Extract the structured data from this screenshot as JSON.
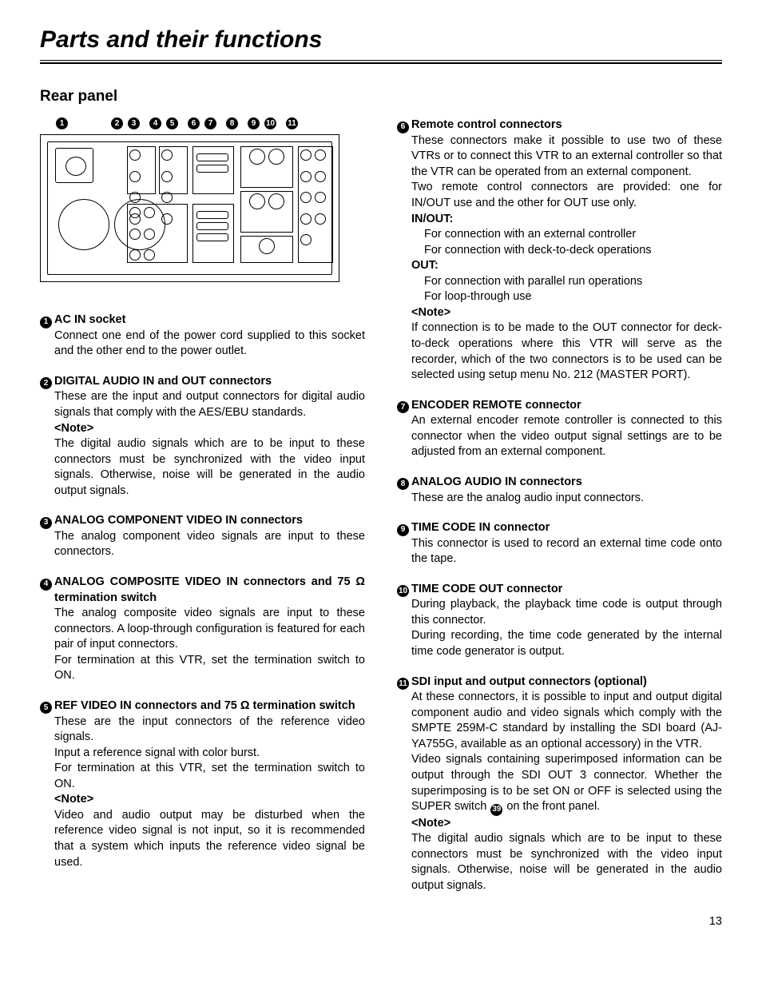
{
  "page": {
    "title": "Parts and their functions",
    "subtitle": "Rear panel",
    "page_number": "13"
  },
  "callout_numbers": [
    "1",
    "2",
    "3",
    "4",
    "5",
    "6",
    "7",
    "8",
    "9",
    "10",
    "11"
  ],
  "left_items": [
    {
      "num": "1",
      "heading": "AC IN socket",
      "paras": [
        "Connect one end of the power cord supplied to this socket and the other end to the power outlet."
      ]
    },
    {
      "num": "2",
      "heading": "DIGITAL AUDIO IN and OUT connectors",
      "paras": [
        "These are the input and output connectors for digital audio signals that comply with the AES/EBU standards."
      ],
      "note": "<Note>",
      "note_text": "The digital audio signals which are to be input to these connectors must be synchronized with the video input signals. Otherwise, noise will be generated in the audio output signals."
    },
    {
      "num": "3",
      "heading": "ANALOG COMPONENT VIDEO IN connectors",
      "paras": [
        "The analog component video signals are input to these connectors."
      ]
    },
    {
      "num": "4",
      "heading": "ANALOG COMPOSITE VIDEO IN connectors and 75 Ω termination switch",
      "paras": [
        "The analog composite video signals are input to these connectors.  A loop-through configuration is featured for each pair of input connectors.",
        "For termination at this VTR, set the termination switch to ON."
      ]
    },
    {
      "num": "5",
      "heading": "REF VIDEO IN connectors and 75 Ω termination switch",
      "paras": [
        "These are the input connectors of the reference video signals.",
        "Input a reference signal with color burst.",
        "For termination at this VTR, set the termination switch to ON."
      ],
      "note": "<Note>",
      "note_text": "Video and audio output may be disturbed when the reference video signal is not input, so it is recommended that a system which inputs the reference video signal be used."
    }
  ],
  "right_items": [
    {
      "num": "6",
      "heading": "Remote control connectors",
      "paras": [
        "These connectors make it possible to use two of these VTRs or to connect this VTR to an external controller so that the VTR can be operated from an external component.",
        "Two remote control connectors are provided: one for IN/OUT use and the other for OUT use only."
      ],
      "subs": [
        {
          "label": "IN/OUT:",
          "lines": [
            "For connection with an external controller",
            "For connection with deck-to-deck operations"
          ]
        },
        {
          "label": "OUT:",
          "lines": [
            "For connection with parallel run operations",
            "For loop-through use"
          ]
        }
      ],
      "note": "<Note>",
      "note_text": "If connection is to be made to the OUT connector for deck-to-deck operations where this VTR will serve as the recorder, which of the two connectors is to be used can be selected using setup menu No. 212 (MASTER PORT)."
    },
    {
      "num": "7",
      "heading": "ENCODER REMOTE connector",
      "paras": [
        "An external encoder remote controller is connected to this connector when the video output signal settings are to be adjusted from an external component."
      ]
    },
    {
      "num": "8",
      "heading": "ANALOG AUDIO IN connectors",
      "paras": [
        "These are the analog audio input connectors."
      ]
    },
    {
      "num": "9",
      "heading": "TIME CODE IN connector",
      "paras": [
        "This connector is used to record an external time code onto the tape."
      ]
    },
    {
      "num": "10",
      "heading": "TIME CODE OUT connector",
      "paras": [
        "During playback, the playback time code is output through this connector.",
        "During recording, the time code generated by the internal time code generator is output."
      ]
    },
    {
      "num": "11",
      "heading": "SDI input and output connectors (optional)",
      "paras": [
        "At these connectors, it is possible to input and output digital component audio and video signals which comply with the SMPTE 259M-C standard by installing the SDI board (AJ-YA755G, available as an optional accessory) in the VTR."
      ],
      "special_para": {
        "before": "Video signals containing superimposed information can be output through the SDI OUT 3 connector. Whether the superimposing is to be set ON or OFF is selected using the SUPER switch ",
        "inline_num": "39",
        "after": " on the front panel."
      },
      "note": "<Note>",
      "note_text": "The digital audio signals which are to be input to these connectors must be synchronized with the video input signals. Otherwise, noise will be generated in the audio output signals."
    }
  ]
}
